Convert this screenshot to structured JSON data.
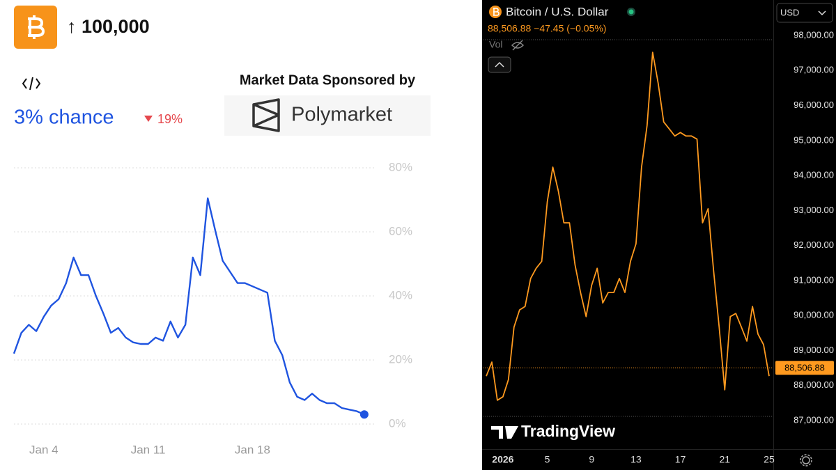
{
  "chart_data": [
    {
      "type": "line",
      "title": "↑ 100,000",
      "headline": "3% chance",
      "change": "19%",
      "sponsor_label": "Market Data Sponsored by",
      "sponsor": "Polymarket",
      "categories": [
        null,
        null,
        null,
        null,
        "Jan 4",
        null,
        null,
        null,
        null,
        null,
        null,
        null,
        null,
        null,
        null,
        null,
        null,
        null,
        "Jan 11",
        null,
        null,
        null,
        null,
        null,
        null,
        null,
        null,
        null,
        null,
        null,
        null,
        null,
        "Jan 18",
        null,
        null,
        null,
        null,
        null,
        null,
        null,
        null,
        null,
        null,
        null,
        null,
        null,
        null,
        null
      ],
      "series": [
        {
          "name": "100,000",
          "color": "#1f54e0",
          "values": [
            22,
            28.5,
            31,
            29,
            33.5,
            37,
            39,
            44,
            52,
            46.5,
            46.5,
            40,
            34.5,
            28.5,
            30,
            27,
            25.5,
            25,
            25,
            27,
            26,
            32,
            27,
            31,
            52,
            46.5,
            70.5,
            60.5,
            51,
            47.5,
            44,
            44,
            43,
            42,
            41,
            26,
            21.5,
            13,
            8.5,
            7.5,
            9.5,
            7.5,
            6.5,
            6.5,
            5,
            4.5,
            4,
            3
          ]
        }
      ],
      "ylim": [
        0,
        80
      ],
      "yticks": [
        {
          "value": 0,
          "label": "0%"
        },
        {
          "value": 20,
          "label": "20%"
        },
        {
          "value": 40,
          "label": "40%"
        },
        {
          "value": 60,
          "label": "60%"
        },
        {
          "value": 80,
          "label": "80%"
        }
      ],
      "grid": true
    },
    {
      "type": "line",
      "title": "Bitcoin / U.S. Dollar",
      "price_text": "88,506.88 −47.45 (−0.05%)",
      "currency": "USD",
      "volume_label": "Vol",
      "brand": "TradingView",
      "categories": [
        null,
        null,
        null,
        "2026",
        null,
        null,
        null,
        null,
        null,
        null,
        null,
        "5",
        null,
        null,
        null,
        null,
        null,
        null,
        null,
        "9",
        null,
        null,
        null,
        null,
        null,
        null,
        null,
        "13",
        null,
        null,
        null,
        null,
        null,
        null,
        null,
        "17",
        null,
        null,
        null,
        null,
        null,
        null,
        null,
        "21",
        null,
        null,
        null,
        null,
        null,
        null,
        null,
        "25"
      ],
      "series": [
        {
          "name": "Bitcoin / U.S. Dollar",
          "color": "#ff9a1f",
          "values": [
            88270,
            88670,
            87580,
            87680,
            88170,
            89670,
            90160,
            90260,
            91060,
            91350,
            91550,
            93250,
            94240,
            93550,
            92650,
            92650,
            91450,
            90660,
            89970,
            90860,
            91350,
            90360,
            90660,
            90660,
            91060,
            90660,
            91550,
            92050,
            94240,
            95430,
            97520,
            96630,
            95530,
            95330,
            95130,
            95230,
            95130,
            95130,
            95040,
            92650,
            93050,
            91260,
            89670,
            87880,
            89970,
            90060,
            89670,
            89270,
            90260,
            89470,
            89170,
            88270
          ]
        }
      ],
      "current_value": 88506.88,
      "current_label": "88,506.88",
      "ylim": [
        87000,
        98000
      ],
      "yticks": [
        {
          "value": 87000,
          "label": "87,000.00"
        },
        {
          "value": 88000,
          "label": "88,000.00"
        },
        {
          "value": 89000,
          "label": "89,000.00"
        },
        {
          "value": 90000,
          "label": "90,000.00"
        },
        {
          "value": 91000,
          "label": "91,000.00"
        },
        {
          "value": 92000,
          "label": "92,000.00"
        },
        {
          "value": 93000,
          "label": "93,000.00"
        },
        {
          "value": 94000,
          "label": "94,000.00"
        },
        {
          "value": 95000,
          "label": "95,000.00"
        },
        {
          "value": 96000,
          "label": "96,000.00"
        },
        {
          "value": 97000,
          "label": "97,000.00"
        },
        {
          "value": 98000,
          "label": "98,000.00"
        }
      ],
      "grid": false
    }
  ]
}
